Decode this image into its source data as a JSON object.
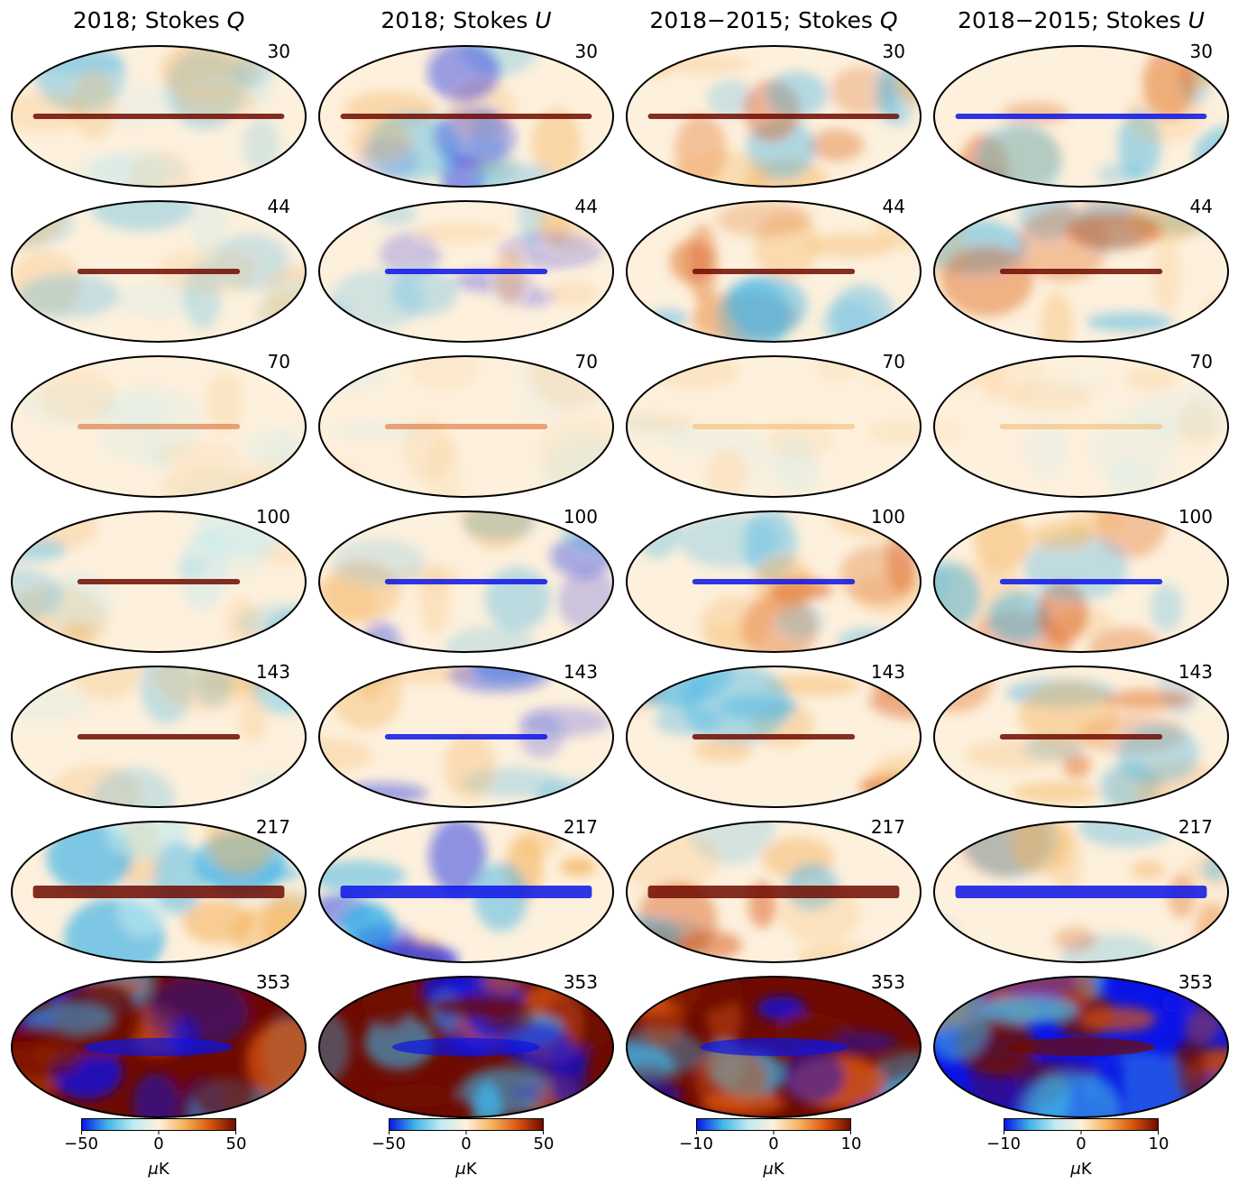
{
  "columns": [
    {
      "title_prefix": "2018; Stokes ",
      "title_var": "Q",
      "cbar": {
        "min_label": "−50",
        "mid_label": "0",
        "max_label": "50",
        "unit_prefix": "μ",
        "unit": "K"
      }
    },
    {
      "title_prefix": "2018; Stokes ",
      "title_var": "U",
      "cbar": {
        "min_label": "−50",
        "mid_label": "0",
        "max_label": "50",
        "unit_prefix": "μ",
        "unit": "K"
      }
    },
    {
      "title_prefix": "2018−2015; Stokes ",
      "title_var": "Q",
      "cbar": {
        "min_label": "−10",
        "mid_label": "0",
        "max_label": "10",
        "unit_prefix": "μ",
        "unit": "K"
      }
    },
    {
      "title_prefix": "2018−2015; Stokes ",
      "title_var": "U",
      "cbar": {
        "min_label": "−10",
        "mid_label": "0",
        "max_label": "10",
        "unit_prefix": "μ",
        "unit": "K"
      }
    }
  ],
  "frequencies": [
    "30",
    "44",
    "70",
    "100",
    "143",
    "217",
    "353"
  ],
  "colormap": [
    "#0a14e6",
    "#3fb4e8",
    "#bfeaf2",
    "#fdf0dc",
    "#f5b25c",
    "#d9560f",
    "#6e0a00"
  ]
}
